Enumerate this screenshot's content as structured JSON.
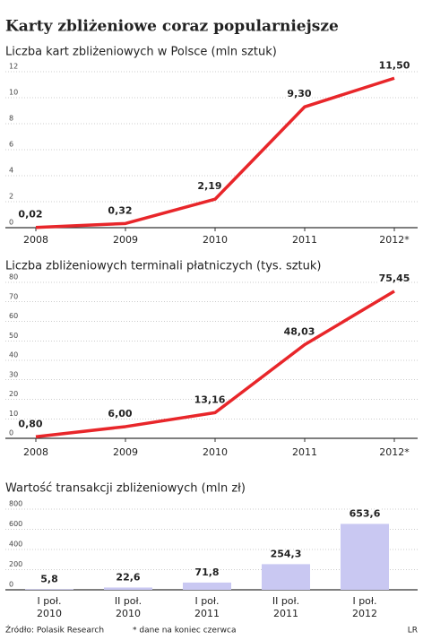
{
  "header": {
    "title": "Karty zbliżeniowe coraz popularniejsze"
  },
  "chart_data": [
    {
      "type": "line",
      "title": "Liczba kart zbliżeniowych w Polsce (mln sztuk)",
      "categories": [
        "2008",
        "2009",
        "2010",
        "2011",
        "2012*"
      ],
      "values": [
        0.02,
        0.32,
        2.19,
        9.3,
        11.5
      ],
      "value_labels": [
        "0,02",
        "0,32",
        "2,19",
        "9,30",
        "11,50"
      ],
      "color": "#e8262a",
      "ylim": [
        0,
        12
      ],
      "yticks": [
        0,
        2,
        4,
        6,
        8,
        10,
        12
      ],
      "grid": true
    },
    {
      "type": "line",
      "title": "Liczba zbliżeniowych terminali płatniczych (tys. sztuk)",
      "categories": [
        "2008",
        "2009",
        "2010",
        "2011",
        "2012*"
      ],
      "values": [
        0.8,
        6.0,
        13.16,
        48.03,
        75.45
      ],
      "value_labels": [
        "0,80",
        "6,00",
        "13,16",
        "48,03",
        "75,45"
      ],
      "color": "#e8262a",
      "ylim": [
        0,
        80
      ],
      "yticks": [
        0,
        10,
        20,
        30,
        40,
        50,
        60,
        70,
        80
      ],
      "grid": true
    },
    {
      "type": "bar",
      "title": "Wartość transakcji zbliżeniowych (mln zł)",
      "categories": [
        [
          "I poł.",
          "2010"
        ],
        [
          "II poł.",
          "2010"
        ],
        [
          "I poł.",
          "2011"
        ],
        [
          "II poł.",
          "2011"
        ],
        [
          "I poł.",
          "2012"
        ]
      ],
      "values": [
        5.8,
        22.6,
        71.8,
        254.3,
        653.6
      ],
      "value_labels": [
        "5,8",
        "22,6",
        "71,8",
        "254,3",
        "653,6"
      ],
      "color": "#c9c8f2",
      "ylim": [
        0,
        800
      ],
      "yticks": [
        0,
        200,
        400,
        600,
        800
      ],
      "grid": true
    }
  ],
  "footer": {
    "source": "Źródło: Polasik Research",
    "note": "* dane na koniec czerwca",
    "credit": "LR"
  }
}
